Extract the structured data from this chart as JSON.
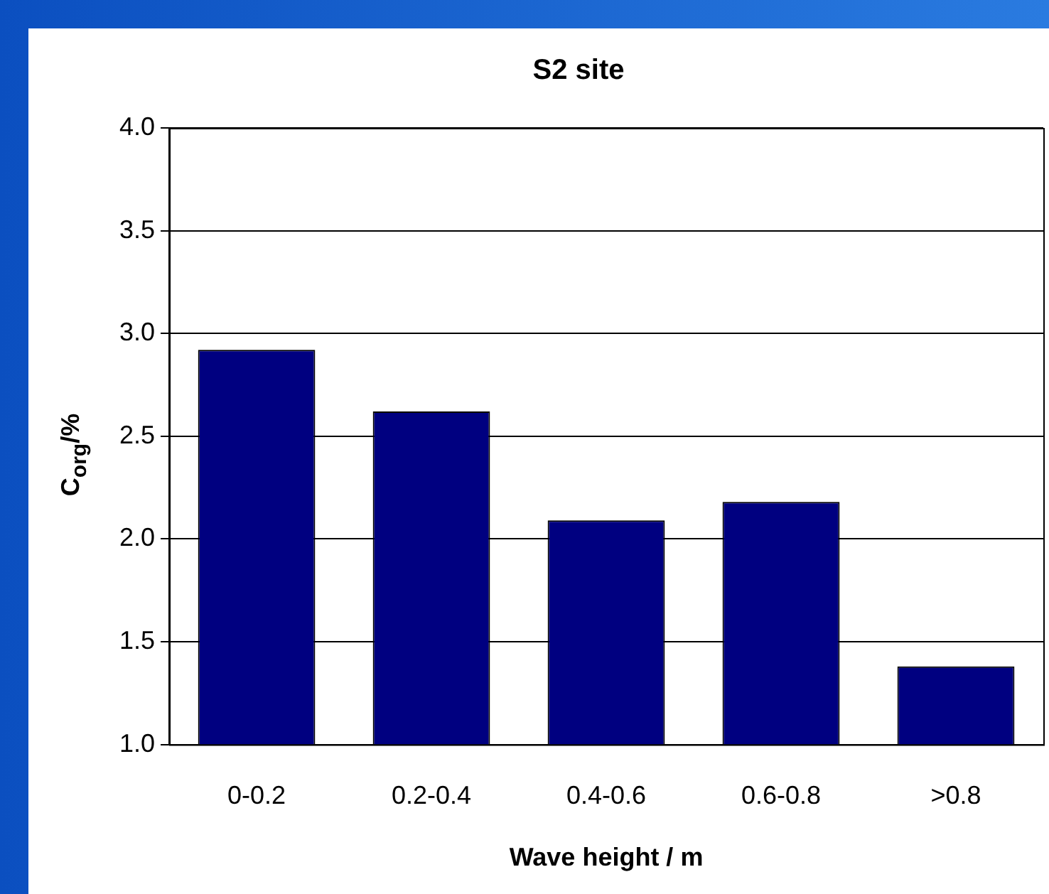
{
  "chart_data": {
    "type": "bar",
    "title": "S2 site",
    "xlabel": "Wave height / m",
    "ylabel": "C$_{org}$/%",
    "categories": [
      "0-0.2",
      "0.2-0.4",
      "0.4-0.6",
      "0.6-0.8",
      ">0.8"
    ],
    "values": [
      2.92,
      2.62,
      2.09,
      2.18,
      1.38
    ],
    "color": "#000080",
    "ylim": [
      1.0,
      4.0
    ],
    "yticks": [
      {
        "value": 1.0,
        "label": "1.0"
      },
      {
        "value": 1.5,
        "label": "1.5"
      },
      {
        "value": 2.0,
        "label": "2.0"
      },
      {
        "value": 2.5,
        "label": "2.5"
      },
      {
        "value": 3.0,
        "label": "3.0"
      },
      {
        "value": 3.5,
        "label": "3.5"
      },
      {
        "value": 4.0,
        "label": "4.0"
      }
    ],
    "grid": "y"
  }
}
